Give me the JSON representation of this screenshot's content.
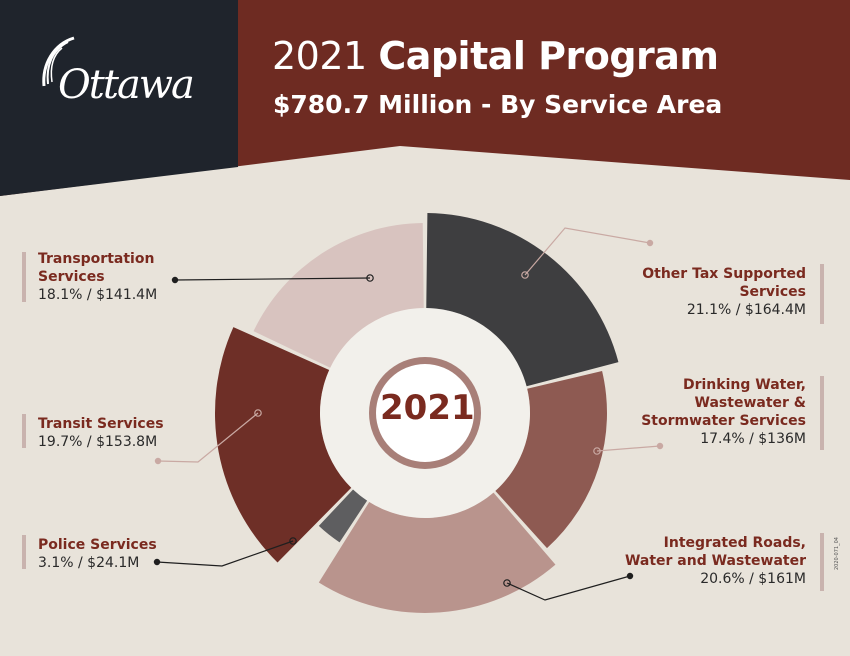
{
  "header": {
    "year": "2021",
    "title_bold": "Capital Program",
    "subtitle": "$780.7 Million - By Service Area",
    "logo_text": "Ottawa",
    "logo_icon": "ottawa-logo-icon"
  },
  "colors": {
    "header_dark": "#1f242c",
    "header_brown": "#6e2b22",
    "background": "#e8e3da"
  },
  "chart_data": {
    "type": "pie",
    "title": "$780.7 Million - By Service Area",
    "center_label": "2021",
    "total": "$780.7 Million",
    "slices": [
      {
        "name": "Other Tax Supported Services",
        "percent": 21.1,
        "value_label": "21.1% / $164.4M",
        "amount_m": 164.4,
        "color": "#3e3e40"
      },
      {
        "name": "Drinking Water, Wastewater & Stormwater Services",
        "percent": 17.4,
        "value_label": "17.4% / $136M",
        "amount_m": 136,
        "color": "#8e5a52"
      },
      {
        "name": "Integrated Roads, Water and Wastewater",
        "percent": 20.6,
        "value_label": "20.6% / $161M",
        "amount_m": 161,
        "color": "#b9948d"
      },
      {
        "name": "Police Services",
        "percent": 3.1,
        "value_label": "3.1% / $24.1M",
        "amount_m": 24.1,
        "color": "#5e5e60"
      },
      {
        "name": "Transit Services",
        "percent": 19.7,
        "value_label": "19.7% / $153.8M",
        "amount_m": 153.8,
        "color": "#6e2f27"
      },
      {
        "name": "Transportation Services",
        "percent": 18.1,
        "value_label": "18.1% / $141.4M",
        "amount_m": 141.4,
        "color": "#d8c3bf"
      }
    ]
  },
  "labels": {
    "transportation": {
      "name_l1": "Transportation",
      "name_l2": "Services",
      "value": "18.1% / $141.4M"
    },
    "transit": {
      "name_l1": "Transit Services",
      "value": "19.7% / $153.8M"
    },
    "police": {
      "name_l1": "Police Services",
      "value": "3.1% / $24.1M"
    },
    "other_tax": {
      "name_l1": "Other Tax Supported",
      "name_l2": "Services",
      "value": "21.1% / $164.4M"
    },
    "drinking": {
      "name_l1": "Drinking Water,",
      "name_l2": "Wastewater &",
      "name_l3": "Stormwater Services",
      "value": "17.4% / $136M"
    },
    "roads": {
      "name_l1": "Integrated Roads,",
      "name_l2": "Water and Wastewater",
      "value": "20.6% / $161M"
    }
  },
  "footer_tag": "2020-071_04"
}
